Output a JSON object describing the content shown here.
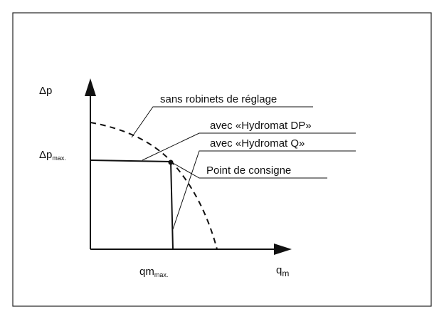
{
  "y_axis": {
    "label": "Δp",
    "max_label": {
      "main": "Δp",
      "sub": "max."
    }
  },
  "x_axis": {
    "label": {
      "main": "q",
      "sub": "m"
    },
    "max_label": {
      "main": "qm",
      "sub": "max."
    }
  },
  "annotations": [
    "sans robinets de réglage",
    "avec «Hydromat DP»",
    "avec «Hydromat Q»",
    "Point de consigne"
  ]
}
